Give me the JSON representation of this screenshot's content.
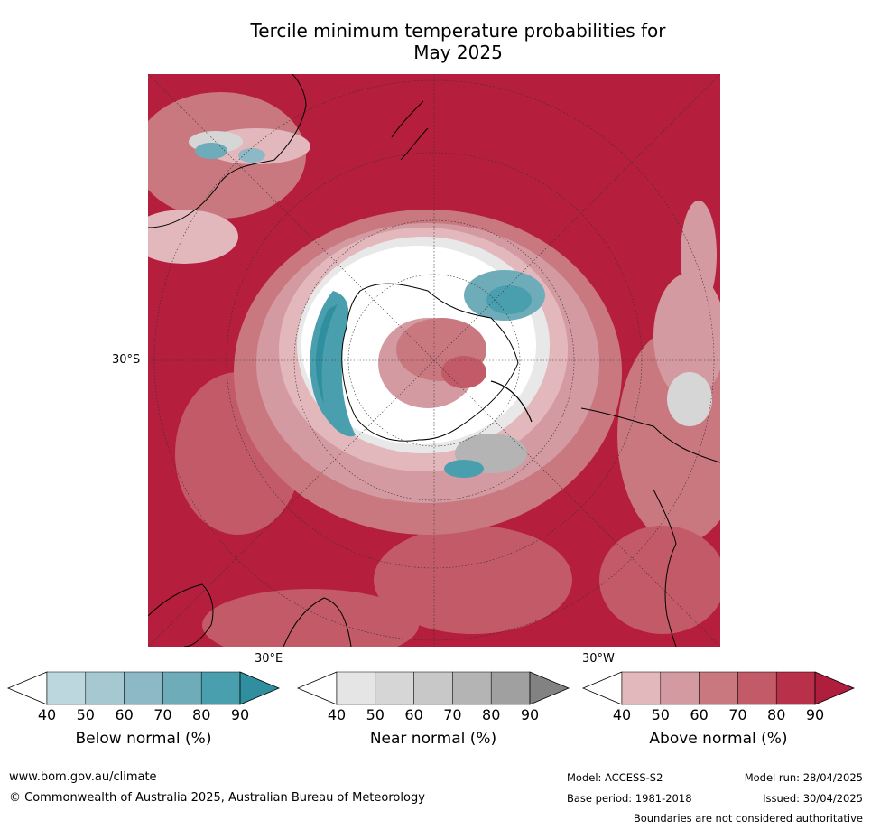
{
  "title_line1": "Tercile minimum temperature probabilities for",
  "title_line2": "May 2025",
  "labels": {
    "lat_30s": "30°S",
    "lon_30e": "30°E",
    "lon_30w": "30°W"
  },
  "legends": [
    {
      "title": "Below normal (%)",
      "ticks": [
        "40",
        "50",
        "60",
        "70",
        "80",
        "90"
      ],
      "colors": [
        "#ffffff",
        "#bdd7df",
        "#a6c9d1",
        "#8db8c5",
        "#6eacb9",
        "#4a9fae",
        "#2f8f9f"
      ]
    },
    {
      "title": "Near normal (%)",
      "ticks": [
        "40",
        "50",
        "60",
        "70",
        "80",
        "90"
      ],
      "colors": [
        "#ffffff",
        "#e5e5e5",
        "#d6d6d6",
        "#c8c8c8",
        "#b4b4b4",
        "#a0a0a0",
        "#828282"
      ]
    },
    {
      "title": "Above normal (%)",
      "ticks": [
        "40",
        "50",
        "60",
        "70",
        "80",
        "90"
      ],
      "colors": [
        "#ffffff",
        "#e3b8bd",
        "#d49aa1",
        "#c97880",
        "#c35a67",
        "#b83049",
        "#b01e3d"
      ]
    }
  ],
  "footer": {
    "url": "www.bom.gov.au/climate",
    "copyright": "© Commonwealth of Australia 2025, Australian Bureau of Meteorology",
    "model": "Model: ACCESS-S2",
    "base_period": "Base period: 1981-2018",
    "model_run": "Model run: 28/04/2025",
    "issued": "Issued: 30/04/2025",
    "disclaimer": "Boundaries are not considered authoritative"
  },
  "colors": {
    "above_dominant": "#b51e3d",
    "below_accent": "#4a9fae",
    "near_accent": "#b4b4b4"
  }
}
